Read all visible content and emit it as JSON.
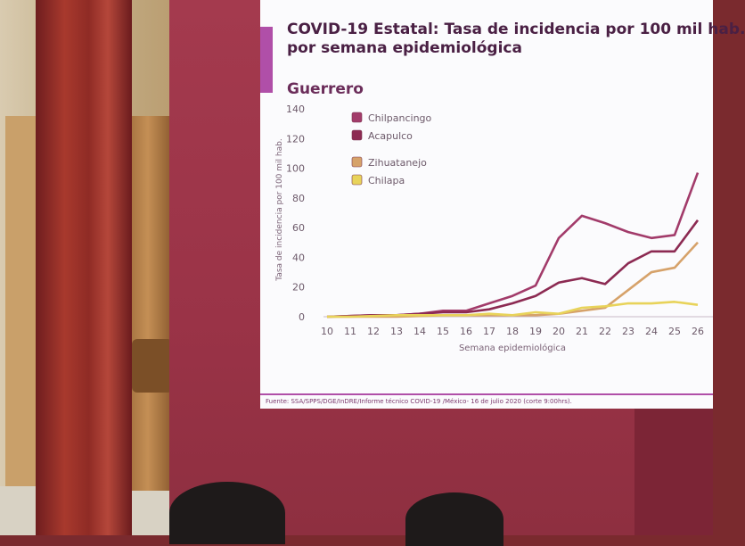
{
  "slide": {
    "title": "COVID-19 Estatal: Tasa de incidencia por 100 mil hab.",
    "subtitle": "por semana epidemiológica",
    "state": "Guerrero",
    "source": "Fuente: SSA/SPPS/DGE/InDRE/Informe técnico COVID-19 /México- 16 de julio 2020 (corte 9:00hrs)."
  },
  "chart_data": {
    "type": "line",
    "title": "",
    "xlabel": "Semana epidemiológica",
    "ylabel": "Tasa de incidencia por 100 mil hab.",
    "x": [
      10,
      11,
      12,
      13,
      14,
      15,
      16,
      17,
      18,
      19,
      20,
      21,
      22,
      23,
      24,
      25,
      26
    ],
    "ylim": [
      0,
      140
    ],
    "yticks": [
      0,
      20,
      40,
      60,
      80,
      100,
      120,
      140
    ],
    "grid": false,
    "legend_position": "top-left",
    "series": [
      {
        "name": "Chilpancingo",
        "color": "#a23b6a",
        "values": [
          0,
          0.5,
          1,
          1,
          2,
          4,
          4,
          9,
          14,
          21,
          53,
          68,
          63,
          57,
          53,
          55,
          97
        ]
      },
      {
        "name": "Acapulco",
        "color": "#8c2a52",
        "values": [
          0,
          0.5,
          1,
          1,
          2,
          3,
          3,
          5,
          9,
          14,
          23,
          26,
          22,
          36,
          44,
          44,
          65
        ]
      },
      {
        "name": "Zihuatanejo",
        "color": "#d6a26a",
        "values": [
          0,
          0,
          0,
          0,
          0.5,
          1,
          1,
          1,
          1,
          1,
          2,
          4,
          6,
          18,
          30,
          33,
          50
        ]
      },
      {
        "name": "Chilapa",
        "color": "#e8d35a",
        "values": [
          0,
          0,
          0.5,
          1,
          1,
          1,
          1,
          2,
          1,
          3,
          2,
          6,
          7,
          9,
          9,
          10,
          8
        ]
      }
    ]
  }
}
